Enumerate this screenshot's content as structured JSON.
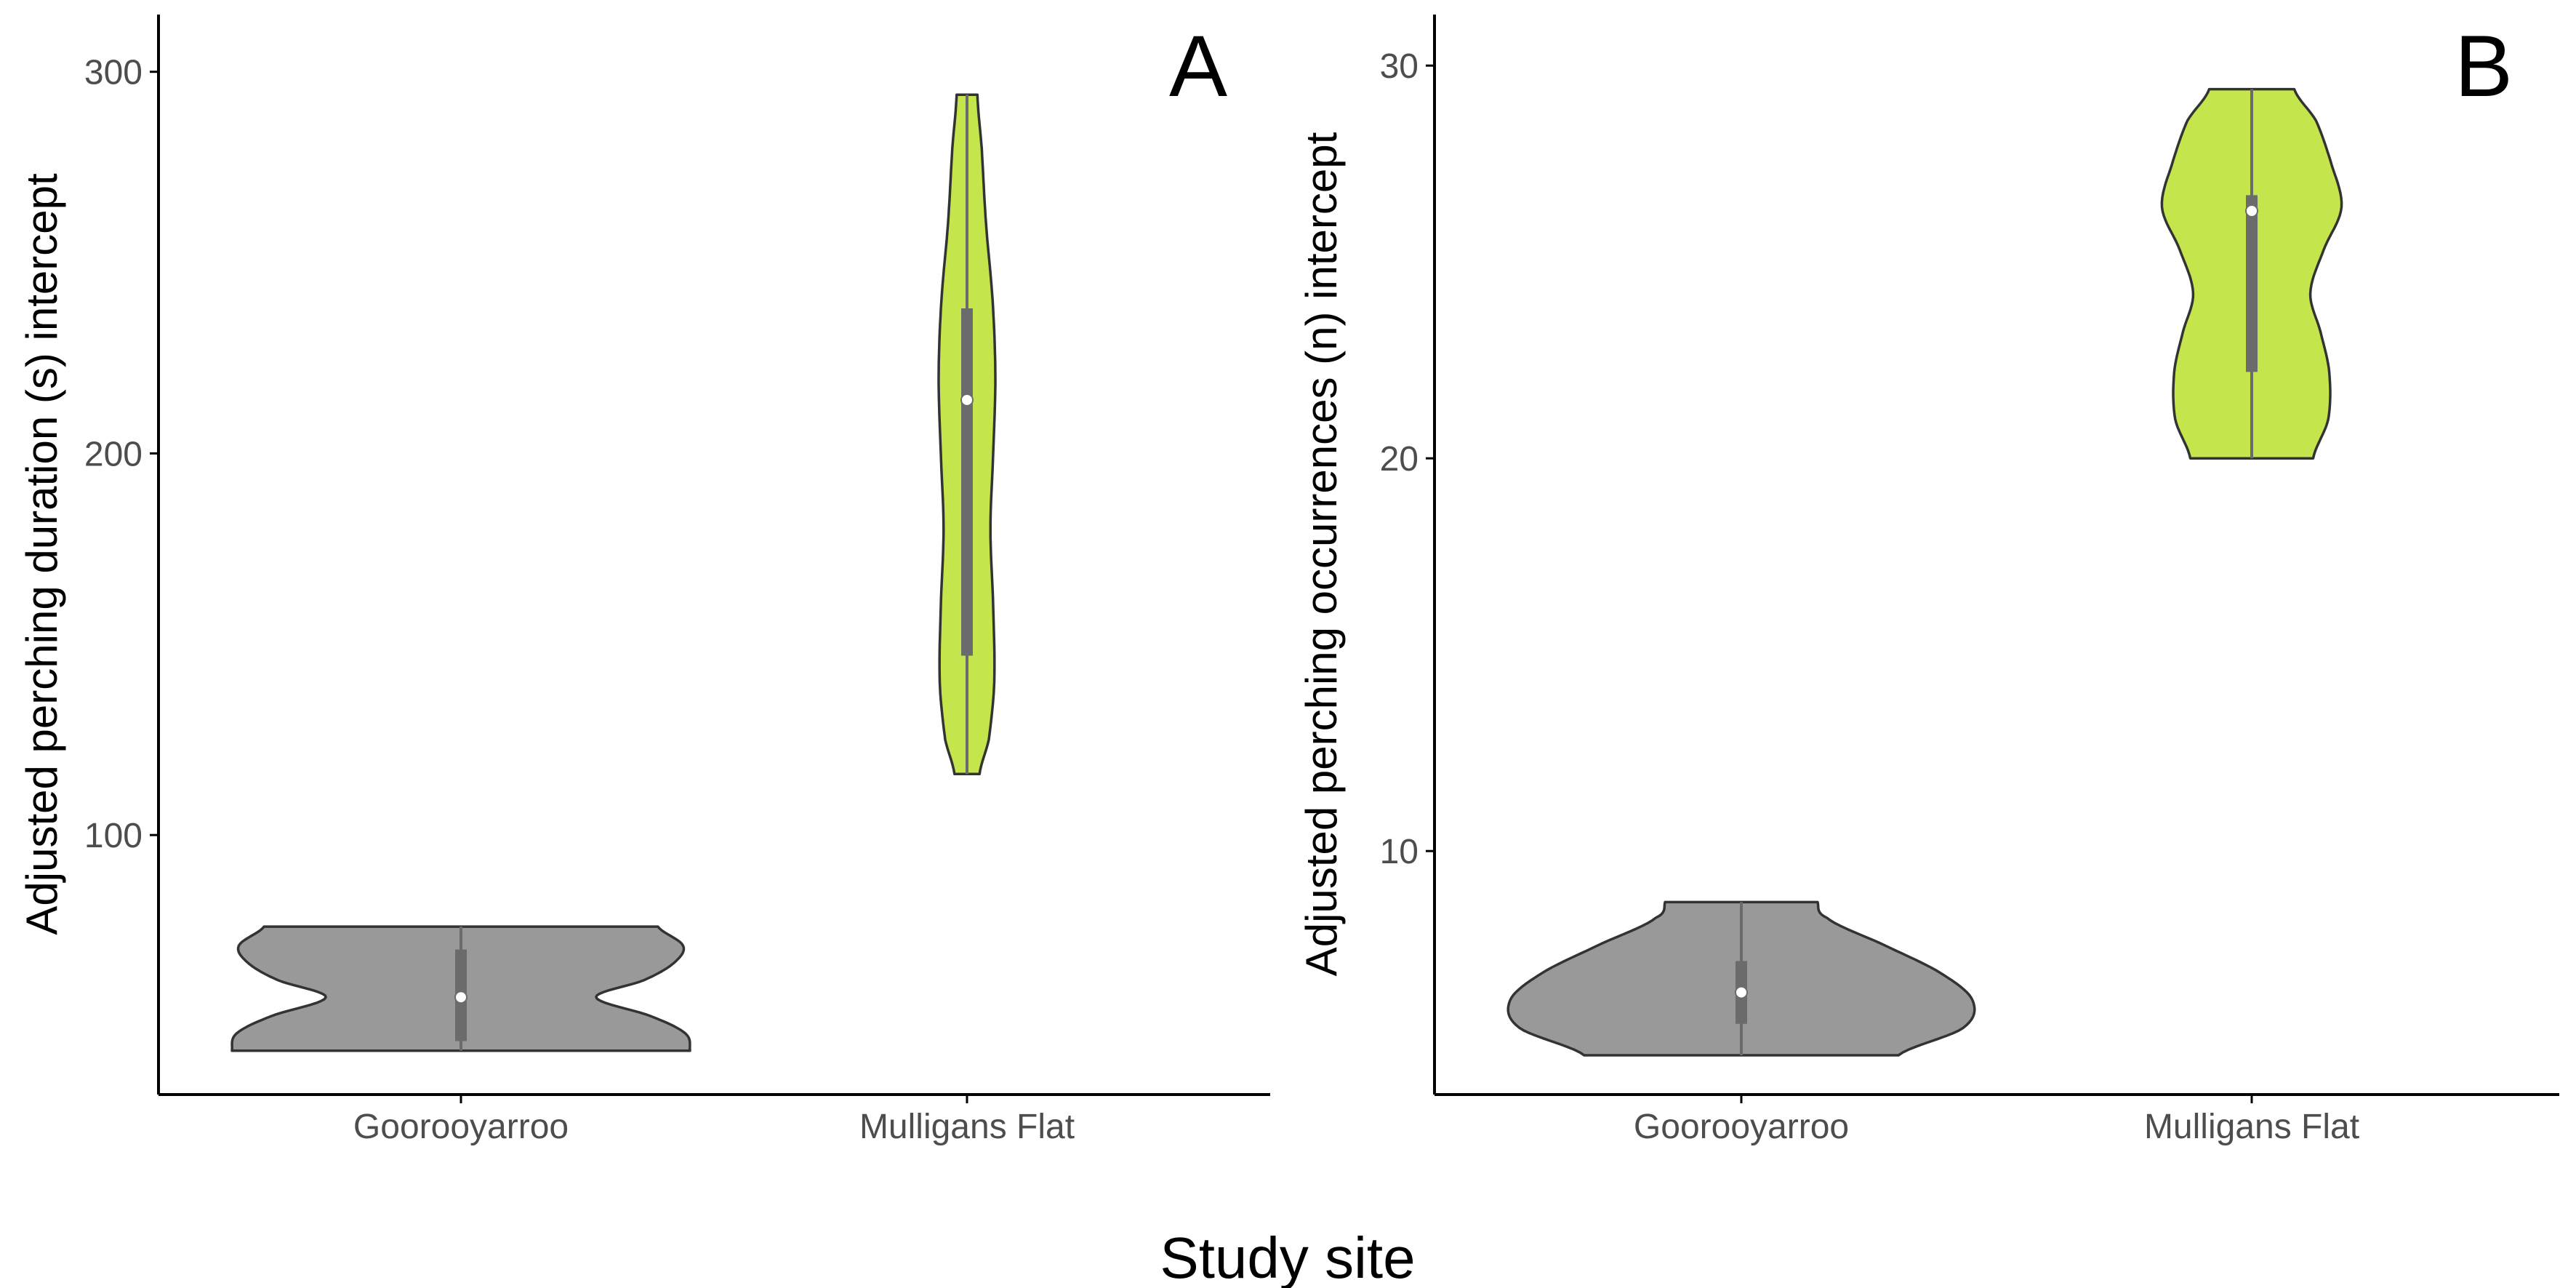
{
  "xlabel": "Study site",
  "colors": {
    "Gooroyarroo": "#67478b",
    "Mulligans Flat": "#c5e54c",
    "outline": "#333333",
    "box": "#6b6b6b",
    "median": "#ffffff"
  },
  "chart_data": [
    {
      "type": "violin",
      "panel_label": "A",
      "categories": [
        "Goorooyarroo",
        "Mulligans Flat"
      ],
      "ylabel": "Adjusted perching duration (s) intercept",
      "ylim": [
        32,
        315
      ],
      "yticks": [
        100,
        200,
        300
      ],
      "grid": false,
      "series": [
        {
          "category": "Goorooyarroo",
          "min": 43.5,
          "max": 76,
          "q1": 46,
          "median": 57.5,
          "q3": 70,
          "density": [
            [
              43.5,
              1
            ],
            [
              48,
              0.98
            ],
            [
              52.5,
              0.83
            ],
            [
              57.5,
              0.59
            ],
            [
              62,
              0.8
            ],
            [
              66.5,
              0.93
            ],
            [
              71,
              0.97
            ],
            [
              76,
              0.86
            ]
          ]
        },
        {
          "category": "Mulligans Flat",
          "min": 116,
          "max": 294,
          "q1": 147,
          "median": 214,
          "q3": 238,
          "density": [
            [
              116,
              0.23
            ],
            [
              125,
              0.4
            ],
            [
              140,
              0.5
            ],
            [
              160,
              0.48
            ],
            [
              180,
              0.43
            ],
            [
              200,
              0.48
            ],
            [
              220,
              0.52
            ],
            [
              240,
              0.47
            ],
            [
              260,
              0.35
            ],
            [
              280,
              0.27
            ],
            [
              294,
              0.19
            ]
          ]
        }
      ]
    },
    {
      "type": "violin",
      "panel_label": "B",
      "categories": [
        "Goorooyarroo",
        "Mulligans Flat"
      ],
      "ylabel": "Adjusted perching occurrences (n) intercept",
      "ylim": [
        3.8,
        31.3
      ],
      "yticks": [
        10,
        20,
        30
      ],
      "grid": false,
      "series": [
        {
          "category": "Goorooyarroo",
          "min": 4.8,
          "max": 8.7,
          "q1": 5.6,
          "median": 6.4,
          "q3": 7.2,
          "density": [
            [
              4.8,
              0.68
            ],
            [
              5.5,
              0.96
            ],
            [
              6.2,
              1
            ],
            [
              6.9,
              0.86
            ],
            [
              7.6,
              0.62
            ],
            [
              8.3,
              0.37
            ],
            [
              8.7,
              0.33
            ]
          ]
        },
        {
          "category": "Mulligans Flat",
          "min": 20,
          "max": 29.4,
          "q1": 22.2,
          "median": 26.3,
          "q3": 26.7,
          "density": [
            [
              20,
              0.65
            ],
            [
              21,
              0.81
            ],
            [
              22.2,
              0.82
            ],
            [
              23.2,
              0.73
            ],
            [
              24.2,
              0.62
            ],
            [
              25.3,
              0.76
            ],
            [
              26.4,
              0.95
            ],
            [
              27.6,
              0.83
            ],
            [
              28.6,
              0.68
            ],
            [
              29.4,
              0.45
            ]
          ]
        }
      ]
    }
  ]
}
